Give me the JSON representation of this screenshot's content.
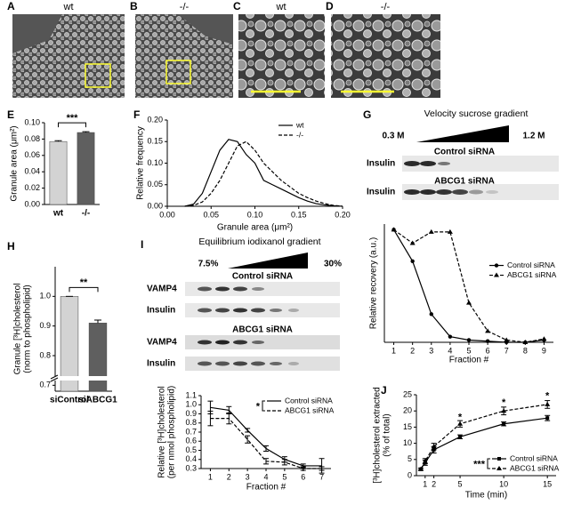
{
  "figure": {
    "images": [
      {
        "panel": "A",
        "title": "wt"
      },
      {
        "panel": "B",
        "title": "-/-"
      },
      {
        "panel": "C",
        "title": "wt"
      },
      {
        "panel": "D",
        "title": "-/-"
      }
    ],
    "gel_g": {
      "panel": "G",
      "title": "Velocity sucrose gradient",
      "left": "0.3 M",
      "right": "1.2 M",
      "groups": [
        {
          "name": "Control siRNA",
          "rows": [
            "Insulin"
          ]
        },
        {
          "name": "ABCG1 siRNA",
          "rows": [
            "Insulin"
          ]
        }
      ]
    },
    "gel_i": {
      "panel": "I",
      "title": "Equilibrium iodixanol gradient",
      "left": "7.5%",
      "right": "30%",
      "groups": [
        {
          "name": "Control siRNA",
          "rows": [
            "VAMP4",
            "Insulin"
          ]
        },
        {
          "name": "ABCG1 siRNA",
          "rows": [
            "VAMP4",
            "Insulin"
          ]
        }
      ]
    }
  },
  "chart_data": [
    {
      "type": "bar",
      "panel": "E",
      "y_label": "Granule area (μm²)",
      "categories": [
        "wt",
        "-/-"
      ],
      "values": [
        0.077,
        0.088
      ],
      "errors": [
        0.001,
        0.001
      ],
      "colors": [
        "#d3d3d3",
        "#5f5f5f"
      ],
      "ylim": [
        0,
        0.1
      ],
      "yticks": [
        {
          "value": 0,
          "label": "0.00"
        },
        0.02,
        0.04,
        0.06,
        0.08,
        {
          "value": 0.1,
          "label": "0.10"
        }
      ],
      "significance": "***"
    },
    {
      "type": "line",
      "panel": "F",
      "x_label": "Granule area (μm²)",
      "y_label": "Relative frequency",
      "x": [
        0.02,
        0.03,
        0.04,
        0.05,
        0.06,
        0.07,
        0.08,
        0.09,
        0.1,
        0.11,
        0.12,
        0.13,
        0.14,
        0.15,
        0.16,
        0.17,
        0.18,
        0.19,
        0.2
      ],
      "series": [
        {
          "name": "wt",
          "color": "#000000",
          "dash": "solid",
          "values": [
            0,
            0.005,
            0.03,
            0.08,
            0.13,
            0.155,
            0.15,
            0.12,
            0.1,
            0.06,
            0.05,
            0.04,
            0.03,
            0.02,
            0.012,
            0.006,
            0.003,
            0.001,
            0
          ]
        },
        {
          "name": "-/-",
          "color": "#000000",
          "dash": "dashed",
          "values": [
            0,
            0.002,
            0.01,
            0.03,
            0.06,
            0.1,
            0.14,
            0.15,
            0.13,
            0.1,
            0.08,
            0.06,
            0.045,
            0.03,
            0.02,
            0.012,
            0.006,
            0.002,
            0
          ]
        }
      ],
      "xlim": [
        0,
        0.2
      ],
      "xticks": [
        {
          "value": 0,
          "label": "0.00"
        },
        0.05,
        {
          "value": 0.1,
          "label": "0.10"
        },
        0.15,
        {
          "value": 0.2,
          "label": "0.20"
        }
      ],
      "ylim": [
        0,
        0.2
      ],
      "yticks": [
        {
          "value": 0,
          "label": "0.00"
        },
        0.05,
        {
          "value": 0.1,
          "label": "0.10"
        },
        0.15,
        {
          "value": 0.2,
          "label": "0.20"
        }
      ],
      "legend": "upper right"
    },
    {
      "type": "line",
      "x_label": "Fraction #",
      "y_label": "Relative recovery (a.u.)",
      "x": [
        1,
        2,
        3,
        4,
        5,
        6,
        7,
        8,
        9
      ],
      "series": [
        {
          "name": "Control siRNA",
          "color": "#000000",
          "dash": "solid",
          "marker": "circle",
          "values": [
            1.0,
            0.72,
            0.25,
            0.05,
            0.02,
            0.01,
            0,
            0,
            0.02
          ]
        },
        {
          "name": "ABCG1 siRNA",
          "color": "#000000",
          "dash": "dashed",
          "marker": "triangle",
          "values": [
            1.0,
            0.88,
            0.98,
            0.98,
            0.35,
            0.1,
            0.02,
            0,
            0.03
          ]
        }
      ],
      "xlim": [
        0.5,
        9.5
      ],
      "xticks": [
        1,
        2,
        3,
        4,
        5,
        6,
        7,
        8,
        9
      ],
      "ylim": [
        0,
        1.05
      ],
      "legend": "right"
    },
    {
      "type": "bar",
      "panel": "H",
      "y_label": [
        "Granule [³H]cholesterol",
        "(norm to phospholipid)"
      ],
      "categories": [
        "siControl",
        "siABCG1"
      ],
      "values": [
        1.0,
        0.91
      ],
      "errors": [
        0,
        0.01
      ],
      "colors": [
        "#d3d3d3",
        "#5f5f5f"
      ],
      "ylim": [
        0.68,
        1.1
      ],
      "yticks": [
        0.7,
        0.8,
        0.9,
        {
          "value": 1.0,
          "label": "1.0"
        }
      ],
      "significance": "**",
      "axis_break": true
    },
    {
      "type": "line",
      "x_label": "Fraction #",
      "y_label": [
        "Relative [³H]cholesterol",
        "(per nmol phospholipid)"
      ],
      "x": [
        1,
        2,
        3,
        4,
        5,
        6,
        7
      ],
      "series": [
        {
          "name": "Control siRNA",
          "color": "#000000",
          "dash": "solid",
          "values": [
            0.97,
            0.94,
            0.72,
            0.52,
            0.4,
            0.33,
            0.33
          ],
          "errors": [
            0.07,
            0.04,
            0.02,
            0.03,
            0.03,
            0.02,
            0.08
          ]
        },
        {
          "name": "ABCG1 siRNA",
          "color": "#000000",
          "dash": "dashed",
          "values": [
            0.85,
            0.85,
            0.62,
            0.38,
            0.37,
            0.3,
            0.3
          ],
          "errors": [
            0.08,
            0.06,
            0.04,
            0.03,
            0.03,
            0.02,
            0.02
          ]
        }
      ],
      "xlim": [
        0.5,
        7.5
      ],
      "xticks": [
        1,
        2,
        3,
        4,
        5,
        6,
        7
      ],
      "ylim": [
        0.3,
        1.1
      ],
      "yticks": [
        0.3,
        0.4,
        0.5,
        0.6,
        0.7,
        0.8,
        0.9,
        {
          "value": 1.0,
          "label": "1.0"
        },
        1.1
      ],
      "legend": "upper right",
      "legend_significance": "*"
    },
    {
      "type": "line",
      "panel": "J",
      "x_label": "Time (min)",
      "y_label": [
        "[³H]cholesterol extracted",
        "(% of total)"
      ],
      "x": [
        0.5,
        1,
        2,
        5,
        10,
        15
      ],
      "series": [
        {
          "name": "Control siRNA",
          "color": "#000000",
          "dash": "solid",
          "marker": "square",
          "values": [
            2,
            4,
            8,
            12,
            16,
            17.8
          ],
          "errors": [
            0.3,
            0.8,
            1,
            0.6,
            0.6,
            0.8
          ]
        },
        {
          "name": "ABCG1 siRNA",
          "color": "#000000",
          "dash": "dashed",
          "marker": "triangle",
          "values": [
            2,
            4.5,
            9,
            16,
            20,
            22
          ],
          "errors": [
            0.3,
            0.8,
            1,
            1,
            1.2,
            1.2
          ]
        }
      ],
      "xlim": [
        0,
        16
      ],
      "xticks": [
        1,
        2,
        5,
        10,
        15
      ],
      "ylim": [
        0,
        25
      ],
      "yticks": [
        0,
        5,
        10,
        15,
        20,
        25
      ],
      "legend": "lower right",
      "legend_significance": "***",
      "annotations": [
        {
          "text": "*",
          "x": 5,
          "y": 18
        },
        {
          "text": "*",
          "x": 10,
          "y": 22.5
        },
        {
          "text": "*",
          "x": 15,
          "y": 24.6
        }
      ]
    }
  ]
}
